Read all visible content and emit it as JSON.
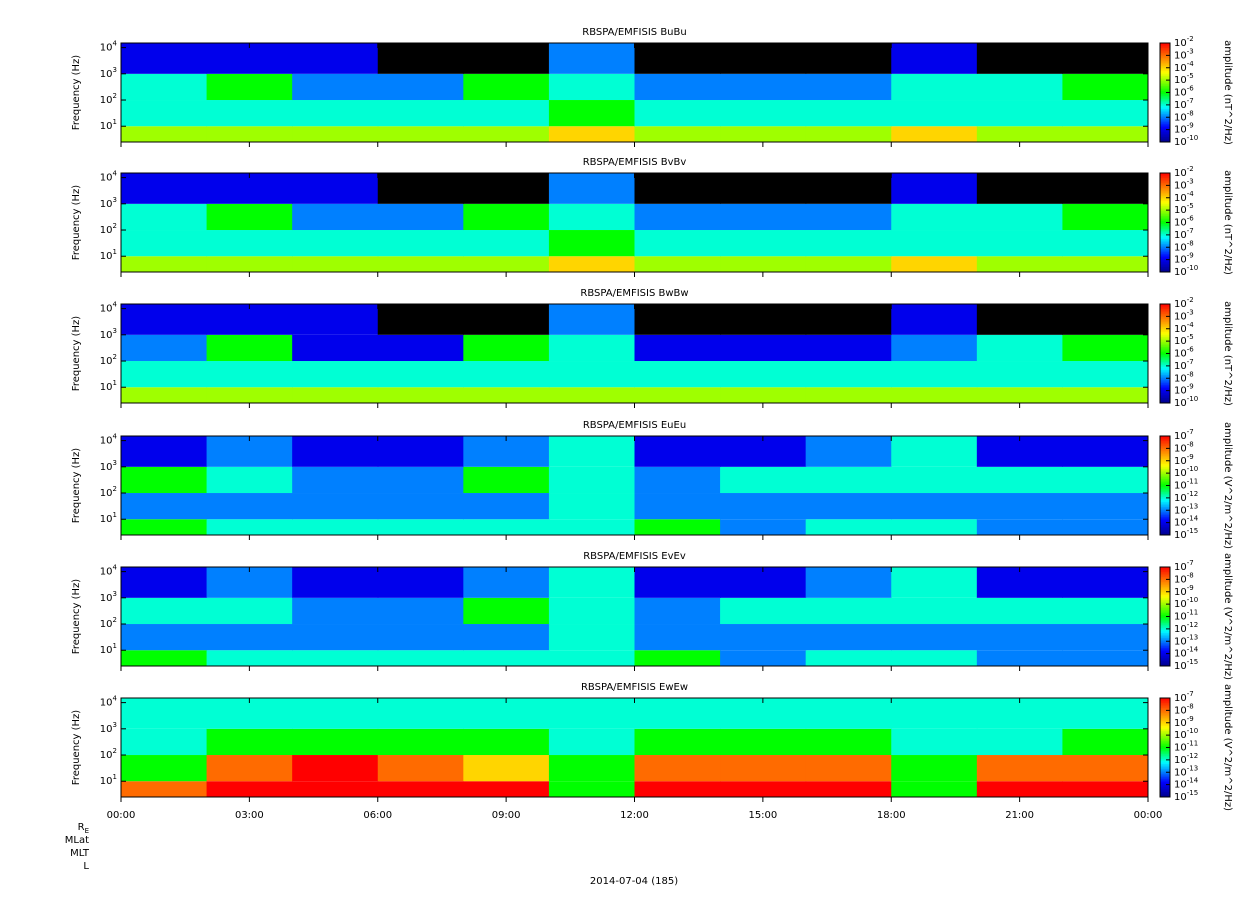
{
  "chart_data": [
    {
      "type": "heatmap",
      "title": "RBSPA/EMFISIS  BuBu",
      "ylabel": "Frequency (Hz)",
      "zlabel": "amplitude (nT^2/Hz)",
      "log_y": true,
      "ylim": [
        2.5,
        15000
      ],
      "yticks": [
        {
          "value": 10,
          "label": "10^1"
        },
        {
          "value": 100,
          "label": "10^2"
        },
        {
          "value": 1000,
          "label": "10^3"
        },
        {
          "value": 10000,
          "label": "10^4"
        }
      ],
      "log_z": true,
      "colormap": "jet",
      "zlim": [
        1e-10,
        0.01
      ],
      "zticks": [
        {
          "value": 0.01,
          "label": "10^-2"
        },
        {
          "value": 0.001,
          "label": "10^-3"
        },
        {
          "value": 0.0001,
          "label": "10^-4"
        },
        {
          "value": 1e-05,
          "label": "10^-5"
        },
        {
          "value": 1e-06,
          "label": "10^-6"
        },
        {
          "value": 1e-07,
          "label": "10^-7"
        },
        {
          "value": 1e-08,
          "label": "10^-8"
        },
        {
          "value": 1e-09,
          "label": "10^-9"
        },
        {
          "value": 1e-10,
          "label": "10^-10"
        }
      ],
      "time_edges": [
        0,
        2,
        4,
        6,
        8,
        10,
        12,
        14,
        16,
        18,
        20,
        22,
        24
      ],
      "freq_edges": [
        2.5,
        10,
        100,
        1000,
        15000
      ],
      "z": [
        [
          1e-05,
          1e-05,
          1e-05,
          1e-05,
          1e-05,
          0.0001,
          1e-05,
          1e-05,
          1e-05,
          0.0001,
          1e-05,
          1e-05
        ],
        [
          1e-07,
          1e-07,
          1e-07,
          1e-07,
          1e-07,
          1e-06,
          1e-07,
          1e-07,
          1e-07,
          1e-07,
          1e-07,
          1e-07
        ],
        [
          1e-07,
          1e-06,
          1e-08,
          1e-08,
          1e-06,
          1e-07,
          1e-08,
          1e-08,
          1e-08,
          1e-07,
          1e-07,
          1e-06
        ],
        [
          1e-09,
          1e-09,
          1e-09,
          1e-10,
          1e-10,
          1e-08,
          1e-10,
          1e-10,
          1e-10,
          1e-09,
          1e-10,
          1e-10
        ]
      ]
    },
    {
      "type": "heatmap",
      "title": "RBSPA/EMFISIS  BvBv",
      "ylabel": "Frequency (Hz)",
      "zlabel": "amplitude (nT^2/Hz)",
      "log_y": true,
      "ylim": [
        2.5,
        15000
      ],
      "yticks": [
        {
          "value": 10,
          "label": "10^1"
        },
        {
          "value": 100,
          "label": "10^2"
        },
        {
          "value": 1000,
          "label": "10^3"
        },
        {
          "value": 10000,
          "label": "10^4"
        }
      ],
      "log_z": true,
      "colormap": "jet",
      "zlim": [
        1e-10,
        0.01
      ],
      "zticks": [
        {
          "value": 0.01,
          "label": "10^-2"
        },
        {
          "value": 0.001,
          "label": "10^-3"
        },
        {
          "value": 0.0001,
          "label": "10^-4"
        },
        {
          "value": 1e-05,
          "label": "10^-5"
        },
        {
          "value": 1e-06,
          "label": "10^-6"
        },
        {
          "value": 1e-07,
          "label": "10^-7"
        },
        {
          "value": 1e-08,
          "label": "10^-8"
        },
        {
          "value": 1e-09,
          "label": "10^-9"
        },
        {
          "value": 1e-10,
          "label": "10^-10"
        }
      ],
      "time_edges": [
        0,
        2,
        4,
        6,
        8,
        10,
        12,
        14,
        16,
        18,
        20,
        22,
        24
      ],
      "freq_edges": [
        2.5,
        10,
        100,
        1000,
        15000
      ],
      "z": [
        [
          1e-05,
          1e-05,
          1e-05,
          1e-05,
          1e-05,
          0.0001,
          1e-05,
          1e-05,
          1e-05,
          0.0001,
          1e-05,
          1e-05
        ],
        [
          1e-07,
          1e-07,
          1e-07,
          1e-07,
          1e-07,
          1e-06,
          1e-07,
          1e-07,
          1e-07,
          1e-07,
          1e-07,
          1e-07
        ],
        [
          1e-07,
          1e-06,
          1e-08,
          1e-08,
          1e-06,
          1e-07,
          1e-08,
          1e-08,
          1e-08,
          1e-07,
          1e-07,
          1e-06
        ],
        [
          1e-09,
          1e-09,
          1e-09,
          1e-10,
          1e-10,
          1e-08,
          1e-10,
          1e-10,
          1e-10,
          1e-09,
          1e-10,
          1e-10
        ]
      ]
    },
    {
      "type": "heatmap",
      "title": "RBSPA/EMFISIS  BwBw",
      "ylabel": "Frequency (Hz)",
      "zlabel": "amplitude (nT^2/Hz)",
      "log_y": true,
      "ylim": [
        2.5,
        15000
      ],
      "yticks": [
        {
          "value": 10,
          "label": "10^1"
        },
        {
          "value": 100,
          "label": "10^2"
        },
        {
          "value": 1000,
          "label": "10^3"
        },
        {
          "value": 10000,
          "label": "10^4"
        }
      ],
      "log_z": true,
      "colormap": "jet",
      "zlim": [
        1e-10,
        0.01
      ],
      "zticks": [
        {
          "value": 0.01,
          "label": "10^-2"
        },
        {
          "value": 0.001,
          "label": "10^-3"
        },
        {
          "value": 0.0001,
          "label": "10^-4"
        },
        {
          "value": 1e-05,
          "label": "10^-5"
        },
        {
          "value": 1e-06,
          "label": "10^-6"
        },
        {
          "value": 1e-07,
          "label": "10^-7"
        },
        {
          "value": 1e-08,
          "label": "10^-8"
        },
        {
          "value": 1e-09,
          "label": "10^-9"
        },
        {
          "value": 1e-10,
          "label": "10^-10"
        }
      ],
      "time_edges": [
        0,
        2,
        4,
        6,
        8,
        10,
        12,
        14,
        16,
        18,
        20,
        22,
        24
      ],
      "freq_edges": [
        2.5,
        10,
        100,
        1000,
        15000
      ],
      "z": [
        [
          1e-05,
          1e-05,
          1e-05,
          1e-05,
          1e-05,
          1e-05,
          1e-05,
          1e-05,
          1e-05,
          1e-05,
          1e-05,
          1e-05
        ],
        [
          1e-07,
          1e-07,
          1e-07,
          1e-07,
          1e-07,
          1e-07,
          1e-07,
          1e-07,
          1e-07,
          1e-07,
          1e-07,
          1e-07
        ],
        [
          1e-08,
          1e-06,
          1e-09,
          1e-09,
          1e-06,
          1e-07,
          1e-09,
          1e-09,
          1e-09,
          1e-08,
          1e-07,
          1e-06
        ],
        [
          1e-09,
          1e-09,
          1e-09,
          1e-10,
          1e-10,
          1e-08,
          1e-10,
          1e-10,
          1e-10,
          1e-09,
          1e-10,
          1e-10
        ]
      ]
    },
    {
      "type": "heatmap",
      "title": "RBSPA/EMFISIS  EuEu",
      "ylabel": "Frequency (Hz)",
      "zlabel": "amplitude (V^2/m^2/Hz)",
      "log_y": true,
      "ylim": [
        2.5,
        15000
      ],
      "yticks": [
        {
          "value": 10,
          "label": "10^1"
        },
        {
          "value": 100,
          "label": "10^2"
        },
        {
          "value": 1000,
          "label": "10^3"
        },
        {
          "value": 10000,
          "label": "10^4"
        }
      ],
      "log_z": true,
      "colormap": "jet",
      "zlim": [
        1e-15,
        1e-07
      ],
      "zticks": [
        {
          "value": 1e-07,
          "label": "10^-7"
        },
        {
          "value": 1e-08,
          "label": "10^-8"
        },
        {
          "value": 1e-09,
          "label": "10^-9"
        },
        {
          "value": 1e-10,
          "label": "10^-10"
        },
        {
          "value": 1e-11,
          "label": "10^-11"
        },
        {
          "value": 1e-12,
          "label": "10^-12"
        },
        {
          "value": 1e-13,
          "label": "10^-13"
        },
        {
          "value": 1e-14,
          "label": "10^-14"
        },
        {
          "value": 1e-15,
          "label": "10^-15"
        }
      ],
      "time_edges": [
        0,
        2,
        4,
        6,
        8,
        10,
        12,
        14,
        16,
        18,
        20,
        22,
        24
      ],
      "freq_edges": [
        2.5,
        10,
        100,
        1000,
        15000
      ],
      "z": [
        [
          1e-11,
          1e-12,
          1e-12,
          1e-12,
          1e-12,
          1e-12,
          1e-11,
          1e-13,
          1e-12,
          1e-12,
          1e-13,
          1e-13
        ],
        [
          1e-13,
          1e-13,
          1e-13,
          1e-13,
          1e-13,
          1e-12,
          1e-13,
          1e-13,
          1e-13,
          1e-13,
          1e-13,
          1e-13
        ],
        [
          1e-11,
          1e-12,
          1e-13,
          1e-13,
          1e-11,
          1e-12,
          1e-13,
          1e-12,
          1e-12,
          1e-12,
          1e-12,
          1e-12
        ],
        [
          1e-14,
          1e-13,
          1e-14,
          1e-14,
          1e-13,
          1e-12,
          1e-14,
          1e-14,
          1e-13,
          1e-12,
          1e-14,
          1e-14
        ]
      ]
    },
    {
      "type": "heatmap",
      "title": "RBSPA/EMFISIS  EvEv",
      "ylabel": "Frequency (Hz)",
      "zlabel": "amplitude (V^2/m^2/Hz)",
      "log_y": true,
      "ylim": [
        2.5,
        15000
      ],
      "yticks": [
        {
          "value": 10,
          "label": "10^1"
        },
        {
          "value": 100,
          "label": "10^2"
        },
        {
          "value": 1000,
          "label": "10^3"
        },
        {
          "value": 10000,
          "label": "10^4"
        }
      ],
      "log_z": true,
      "colormap": "jet",
      "zlim": [
        1e-15,
        1e-07
      ],
      "zticks": [
        {
          "value": 1e-07,
          "label": "10^-7"
        },
        {
          "value": 1e-08,
          "label": "10^-8"
        },
        {
          "value": 1e-09,
          "label": "10^-9"
        },
        {
          "value": 1e-10,
          "label": "10^-10"
        },
        {
          "value": 1e-11,
          "label": "10^-11"
        },
        {
          "value": 1e-12,
          "label": "10^-12"
        },
        {
          "value": 1e-13,
          "label": "10^-13"
        },
        {
          "value": 1e-14,
          "label": "10^-14"
        },
        {
          "value": 1e-15,
          "label": "10^-15"
        }
      ],
      "time_edges": [
        0,
        2,
        4,
        6,
        8,
        10,
        12,
        14,
        16,
        18,
        20,
        22,
        24
      ],
      "freq_edges": [
        2.5,
        10,
        100,
        1000,
        15000
      ],
      "z": [
        [
          1e-11,
          1e-12,
          1e-12,
          1e-12,
          1e-12,
          1e-12,
          1e-11,
          1e-13,
          1e-12,
          1e-12,
          1e-13,
          1e-13
        ],
        [
          1e-13,
          1e-13,
          1e-13,
          1e-13,
          1e-13,
          1e-12,
          1e-13,
          1e-13,
          1e-13,
          1e-13,
          1e-13,
          1e-13
        ],
        [
          1e-12,
          1e-12,
          1e-13,
          1e-13,
          1e-11,
          1e-12,
          1e-13,
          1e-12,
          1e-12,
          1e-12,
          1e-12,
          1e-12
        ],
        [
          1e-14,
          1e-13,
          1e-14,
          1e-14,
          1e-13,
          1e-12,
          1e-14,
          1e-14,
          1e-13,
          1e-12,
          1e-14,
          1e-14
        ]
      ]
    },
    {
      "type": "heatmap",
      "title": "RBSPA/EMFISIS  EwEw",
      "ylabel": "Frequency (Hz)",
      "zlabel": "amplitude (V^2/m^2/Hz)",
      "log_y": true,
      "ylim": [
        2.5,
        15000
      ],
      "yticks": [
        {
          "value": 10,
          "label": "10^1"
        },
        {
          "value": 100,
          "label": "10^2"
        },
        {
          "value": 1000,
          "label": "10^3"
        },
        {
          "value": 10000,
          "label": "10^4"
        }
      ],
      "log_z": true,
      "colormap": "jet",
      "zlim": [
        1e-15,
        1e-07
      ],
      "zticks": [
        {
          "value": 1e-07,
          "label": "10^-7"
        },
        {
          "value": 1e-08,
          "label": "10^-8"
        },
        {
          "value": 1e-09,
          "label": "10^-9"
        },
        {
          "value": 1e-10,
          "label": "10^-10"
        },
        {
          "value": 1e-11,
          "label": "10^-11"
        },
        {
          "value": 1e-12,
          "label": "10^-12"
        },
        {
          "value": 1e-13,
          "label": "10^-13"
        },
        {
          "value": 1e-14,
          "label": "10^-14"
        },
        {
          "value": 1e-15,
          "label": "10^-15"
        }
      ],
      "time_edges": [
        0,
        2,
        4,
        6,
        8,
        10,
        12,
        14,
        16,
        18,
        20,
        22,
        24
      ],
      "freq_edges": [
        2.5,
        10,
        100,
        1000,
        15000
      ],
      "z": [
        [
          1e-08,
          1e-07,
          1e-07,
          1e-07,
          1e-07,
          1e-11,
          1e-07,
          1e-07,
          1e-07,
          1e-11,
          1e-07,
          1e-07
        ],
        [
          1e-11,
          1e-08,
          1e-07,
          1e-08,
          1e-09,
          1e-11,
          1e-08,
          1e-08,
          1e-08,
          1e-11,
          1e-08,
          1e-08
        ],
        [
          1e-12,
          1e-11,
          1e-11,
          1e-11,
          1e-11,
          1e-12,
          1e-11,
          1e-11,
          1e-11,
          1e-12,
          1e-12,
          1e-11
        ],
        [
          1e-12,
          1e-12,
          1e-12,
          1e-12,
          1e-12,
          1e-12,
          1e-12,
          1e-12,
          1e-12,
          1e-12,
          1e-12,
          1e-12
        ]
      ]
    }
  ],
  "time_axis": {
    "xlim": [
      0,
      24
    ],
    "xticks": [
      {
        "value": 0,
        "label": "00:00"
      },
      {
        "value": 3,
        "label": "03:00"
      },
      {
        "value": 6,
        "label": "06:00"
      },
      {
        "value": 9,
        "label": "09:00"
      },
      {
        "value": 12,
        "label": "12:00"
      },
      {
        "value": 15,
        "label": "15:00"
      },
      {
        "value": 18,
        "label": "18:00"
      },
      {
        "value": 21,
        "label": "21:00"
      },
      {
        "value": 24,
        "label": "00:00"
      }
    ]
  },
  "ephemeris_labels": [
    "R_E",
    "MLat",
    "MLT",
    "L"
  ],
  "date_label": "2014-07-04 (185)"
}
